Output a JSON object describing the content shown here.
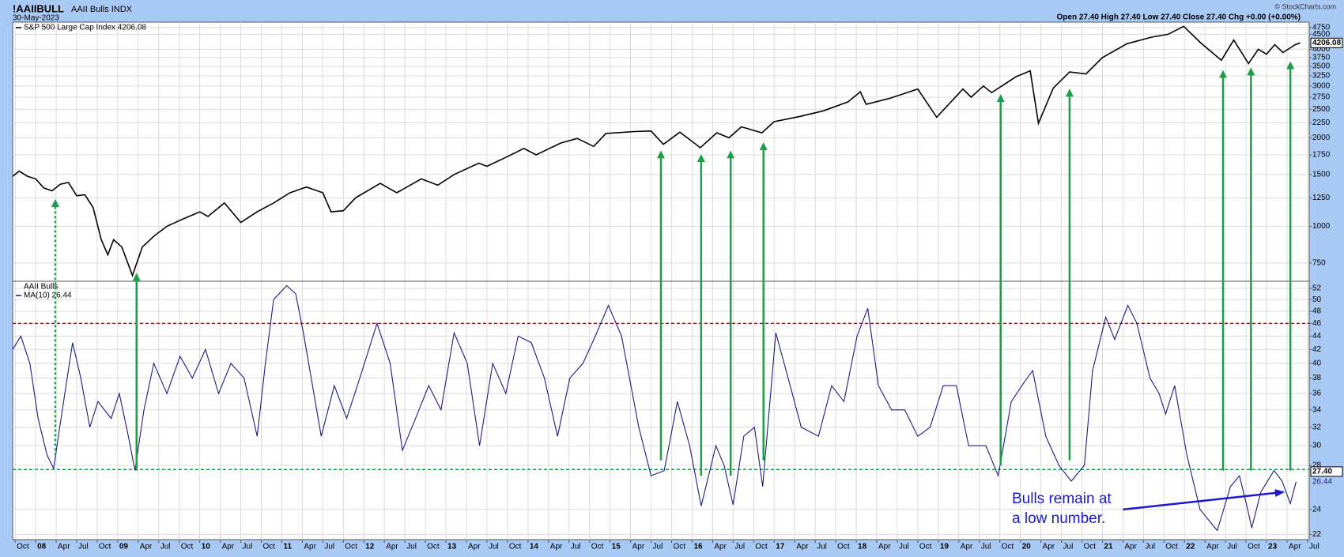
{
  "header": {
    "symbol": "!AAIIBULL",
    "name": "AAII Bulls INDX",
    "date": "30-May-2023",
    "quote": "Open 27.40  High 27.40  Low 27.40  Close 27.40  Chg +0.00 (+0.00%)",
    "copyright": "© StockCharts.com"
  },
  "chart_data": [
    {
      "type": "line",
      "title": "S&P 500 Large Cap Index 4206.08",
      "log_scale": true,
      "grid": true,
      "x": [
        2007.72,
        2007.8,
        2007.9,
        2008.0,
        2008.1,
        2008.2,
        2008.3,
        2008.4,
        2008.5,
        2008.6,
        2008.7,
        2008.8,
        2008.88,
        2008.95,
        2009.05,
        2009.18,
        2009.3,
        2009.45,
        2009.6,
        2009.8,
        2010.0,
        2010.1,
        2010.3,
        2010.5,
        2010.7,
        2010.9,
        2011.1,
        2011.3,
        2011.5,
        2011.6,
        2011.75,
        2011.9,
        2012.2,
        2012.4,
        2012.7,
        2012.9,
        2013.1,
        2013.4,
        2013.5,
        2013.7,
        2013.95,
        2014.1,
        2014.4,
        2014.6,
        2014.8,
        2014.95,
        2015.3,
        2015.5,
        2015.65,
        2015.85,
        2016.1,
        2016.3,
        2016.45,
        2016.6,
        2016.85,
        2017.0,
        2017.3,
        2017.6,
        2017.9,
        2018.05,
        2018.12,
        2018.4,
        2018.75,
        2018.98,
        2019.3,
        2019.4,
        2019.55,
        2019.65,
        2019.95,
        2020.12,
        2020.22,
        2020.4,
        2020.6,
        2020.8,
        2021.0,
        2021.3,
        2021.6,
        2021.8,
        2021.99,
        2022.2,
        2022.45,
        2022.6,
        2022.78,
        2022.9,
        2023.0,
        2023.1,
        2023.2,
        2023.35,
        2023.41
      ],
      "series": [
        {
          "name": "S&P 500 Large Cap Index 4206.08",
          "color": "#000000",
          "values": [
            1480,
            1540,
            1480,
            1450,
            1350,
            1320,
            1390,
            1410,
            1270,
            1280,
            1160,
            900,
            800,
            900,
            850,
            680,
            850,
            930,
            1000,
            1060,
            1120,
            1080,
            1200,
            1030,
            1120,
            1200,
            1300,
            1360,
            1300,
            1120,
            1130,
            1250,
            1400,
            1300,
            1450,
            1380,
            1500,
            1640,
            1600,
            1700,
            1840,
            1750,
            1920,
            1990,
            1870,
            2070,
            2100,
            2110,
            1900,
            2090,
            1850,
            2080,
            2000,
            2180,
            2080,
            2270,
            2360,
            2470,
            2650,
            2870,
            2600,
            2720,
            2930,
            2350,
            2930,
            2750,
            3000,
            2850,
            3230,
            3380,
            2240,
            2950,
            3350,
            3300,
            3750,
            4180,
            4400,
            4500,
            4790,
            4200,
            3670,
            4300,
            3580,
            4000,
            3850,
            4150,
            3900,
            4150,
            4206.08
          ]
        }
      ],
      "xlim": [
        2007.72,
        2023.52
      ],
      "ylim": [
        650,
        4950
      ],
      "yticks": [
        750,
        1000,
        1250,
        1500,
        1750,
        2000,
        2250,
        2500,
        2750,
        3000,
        3250,
        3500,
        3750,
        4000,
        4500,
        4750
      ],
      "last_value": {
        "value": 4206.08,
        "label": "4206.08"
      }
    },
    {
      "type": "line",
      "title": "AAII Bulls",
      "log_scale": true,
      "grid": true,
      "x": [
        2007.72,
        2007.82,
        2007.93,
        2008.03,
        2008.14,
        2008.22,
        2008.31,
        2008.45,
        2008.55,
        2008.66,
        2008.76,
        2008.92,
        2009.02,
        2009.13,
        2009.21,
        2009.32,
        2009.44,
        2009.6,
        2009.76,
        2009.91,
        2010.07,
        2010.23,
        2010.38,
        2010.54,
        2010.7,
        2010.8,
        2010.9,
        2011.06,
        2011.17,
        2011.27,
        2011.48,
        2011.64,
        2011.79,
        2011.95,
        2012.16,
        2012.32,
        2012.47,
        2012.63,
        2012.79,
        2012.94,
        2013.1,
        2013.26,
        2013.41,
        2013.57,
        2013.73,
        2013.88,
        2014.04,
        2014.2,
        2014.36,
        2014.51,
        2014.67,
        2014.82,
        2014.98,
        2015.14,
        2015.35,
        2015.5,
        2015.66,
        2015.82,
        2015.97,
        2016.11,
        2016.29,
        2016.39,
        2016.5,
        2016.63,
        2016.76,
        2016.86,
        2017.02,
        2017.17,
        2017.33,
        2017.54,
        2017.7,
        2017.85,
        2018.01,
        2018.14,
        2018.27,
        2018.43,
        2018.59,
        2018.75,
        2018.9,
        2019.06,
        2019.22,
        2019.37,
        2019.58,
        2019.73,
        2019.89,
        2020.05,
        2020.15,
        2020.31,
        2020.47,
        2020.62,
        2020.78,
        2020.88,
        2021.04,
        2021.15,
        2021.31,
        2021.42,
        2021.58,
        2021.69,
        2021.77,
        2021.88,
        2022.03,
        2022.19,
        2022.4,
        2022.56,
        2022.67,
        2022.77,
        2022.82,
        2022.93,
        2023.09,
        2023.19,
        2023.29,
        2023.36
      ],
      "series": [
        {
          "name": "MA(10) 26.44",
          "color": "#1c1c80",
          "values": [
            42,
            44,
            40,
            33,
            29,
            27.7,
            33,
            43,
            38,
            32,
            35,
            33,
            36,
            31,
            27.5,
            34,
            40,
            36,
            41,
            38,
            42,
            36,
            40,
            38,
            31,
            40,
            50,
            52.5,
            51,
            44,
            31,
            37,
            33,
            38,
            46,
            40,
            29.5,
            33,
            37,
            34,
            44.5,
            40,
            30,
            40,
            36,
            44,
            43,
            38,
            31,
            38,
            40,
            44,
            49,
            44,
            32,
            27,
            27.5,
            35,
            30,
            24.3,
            30,
            28,
            24.4,
            31,
            32,
            26,
            44.5,
            38,
            32,
            31,
            37,
            35,
            44,
            48.5,
            37,
            34,
            34,
            31,
            32,
            37,
            37,
            30,
            30,
            27,
            35,
            37.5,
            39,
            31,
            28,
            26.5,
            28,
            39,
            47,
            43.5,
            49,
            46,
            38,
            36,
            33.5,
            37,
            29,
            24,
            22.3,
            26,
            27,
            24,
            22.5,
            25.5,
            27.5,
            26.5,
            24.5,
            26.44
          ]
        }
      ],
      "xlim": [
        2007.72,
        2023.52
      ],
      "ylim": [
        21.6,
        53.3
      ],
      "yticks": [
        22,
        24,
        28,
        30,
        32,
        34,
        36,
        38,
        40,
        42,
        44,
        46,
        48,
        50,
        52
      ],
      "xticks": [
        {
          "value": 2007.75,
          "label": "Oct"
        },
        {
          "value": 2008,
          "label": "08"
        },
        {
          "value": 2008.25,
          "label": "Apr"
        },
        {
          "value": 2008.5,
          "label": "Jul"
        },
        {
          "value": 2008.75,
          "label": "Oct"
        },
        {
          "value": 2009,
          "label": "09"
        },
        {
          "value": 2009.25,
          "label": "Apr"
        },
        {
          "value": 2009.5,
          "label": "Jul"
        },
        {
          "value": 2009.75,
          "label": "Oct"
        },
        {
          "value": 2010,
          "label": "10"
        },
        {
          "value": 2010.25,
          "label": "Apr"
        },
        {
          "value": 2010.5,
          "label": "Jul"
        },
        {
          "value": 2010.75,
          "label": "Oct"
        },
        {
          "value": 2011,
          "label": "11"
        },
        {
          "value": 2011.25,
          "label": "Apr"
        },
        {
          "value": 2011.5,
          "label": "Jul"
        },
        {
          "value": 2011.75,
          "label": "Oct"
        },
        {
          "value": 2012,
          "label": "12"
        },
        {
          "value": 2012.25,
          "label": "Apr"
        },
        {
          "value": 2012.5,
          "label": "Jul"
        },
        {
          "value": 2012.75,
          "label": "Oct"
        },
        {
          "value": 2013,
          "label": "13"
        },
        {
          "value": 2013.25,
          "label": "Apr"
        },
        {
          "value": 2013.5,
          "label": "Jul"
        },
        {
          "value": 2013.75,
          "label": "Oct"
        },
        {
          "value": 2014,
          "label": "14"
        },
        {
          "value": 2014.25,
          "label": "Apr"
        },
        {
          "value": 2014.5,
          "label": "Jul"
        },
        {
          "value": 2014.75,
          "label": "Oct"
        },
        {
          "value": 2015,
          "label": "15"
        },
        {
          "value": 2015.25,
          "label": "Apr"
        },
        {
          "value": 2015.5,
          "label": "Jul"
        },
        {
          "value": 2015.75,
          "label": "Oct"
        },
        {
          "value": 2016,
          "label": "16"
        },
        {
          "value": 2016.25,
          "label": "Apr"
        },
        {
          "value": 2016.5,
          "label": "Jul"
        },
        {
          "value": 2016.75,
          "label": "Oct"
        },
        {
          "value": 2017,
          "label": "17"
        },
        {
          "value": 2017.25,
          "label": "Apr"
        },
        {
          "value": 2017.5,
          "label": "Jul"
        },
        {
          "value": 2017.75,
          "label": "Oct"
        },
        {
          "value": 2018,
          "label": "18"
        },
        {
          "value": 2018.25,
          "label": "Apr"
        },
        {
          "value": 2018.5,
          "label": "Jul"
        },
        {
          "value": 2018.75,
          "label": "Oct"
        },
        {
          "value": 2019,
          "label": "19"
        },
        {
          "value": 2019.25,
          "label": "Apr"
        },
        {
          "value": 2019.5,
          "label": "Jul"
        },
        {
          "value": 2019.75,
          "label": "Oct"
        },
        {
          "value": 2020,
          "label": "20"
        },
        {
          "value": 2020.25,
          "label": "Apr"
        },
        {
          "value": 2020.5,
          "label": "Jul"
        },
        {
          "value": 2020.75,
          "label": "Oct"
        },
        {
          "value": 2021,
          "label": "21"
        },
        {
          "value": 2021.25,
          "label": "Apr"
        },
        {
          "value": 2021.5,
          "label": "Jul"
        },
        {
          "value": 2021.75,
          "label": "Oct"
        },
        {
          "value": 2022,
          "label": "22"
        },
        {
          "value": 2022.25,
          "label": "Apr"
        },
        {
          "value": 2022.5,
          "label": "Jul"
        },
        {
          "value": 2022.75,
          "label": "Oct"
        },
        {
          "value": 2023,
          "label": "23"
        },
        {
          "value": 2023.25,
          "label": "Apr"
        },
        {
          "value": 2023.5,
          "label": "Jul"
        }
      ],
      "hlines": [
        {
          "value": 46,
          "color": "#cc0000"
        },
        {
          "value": 27.6,
          "color": "#1a9a50"
        }
      ],
      "last_value": {
        "value": 27.4,
        "label": "27.40"
      },
      "ma_value": {
        "value": 26.44,
        "label": "26.44"
      }
    }
  ],
  "annotations": {
    "arrow_color": "#1f9e4a",
    "arrows": [
      {
        "x": 2008.24,
        "from": 29,
        "to": 1230,
        "dotted": true
      },
      {
        "x": 2009.23,
        "from": 27.5,
        "to": 690,
        "dotted": false
      },
      {
        "x": 2015.62,
        "from": 28.5,
        "to": 1800,
        "dotted": false
      },
      {
        "x": 2016.11,
        "from": 27,
        "to": 1750,
        "dotted": false
      },
      {
        "x": 2016.47,
        "from": 27,
        "to": 1800,
        "dotted": false
      },
      {
        "x": 2016.87,
        "from": 28.5,
        "to": 1920,
        "dotted": false
      },
      {
        "x": 2019.76,
        "from": 28,
        "to": 2800,
        "dotted": false
      },
      {
        "x": 2020.6,
        "from": 28.5,
        "to": 2920,
        "dotted": false
      },
      {
        "x": 2022.47,
        "from": 27.5,
        "to": 3380,
        "dotted": false
      },
      {
        "x": 2022.81,
        "from": 27.5,
        "to": 3450,
        "dotted": false
      },
      {
        "x": 2023.29,
        "from": 27.5,
        "to": 3620,
        "dotted": false
      }
    ],
    "note": {
      "lines": [
        "Bulls remain at",
        "a low number."
      ],
      "color": "#1a1acc",
      "arrow_from": [
        2021.25,
        24
      ],
      "arrow_to": [
        2023.2,
        25.5
      ]
    }
  }
}
